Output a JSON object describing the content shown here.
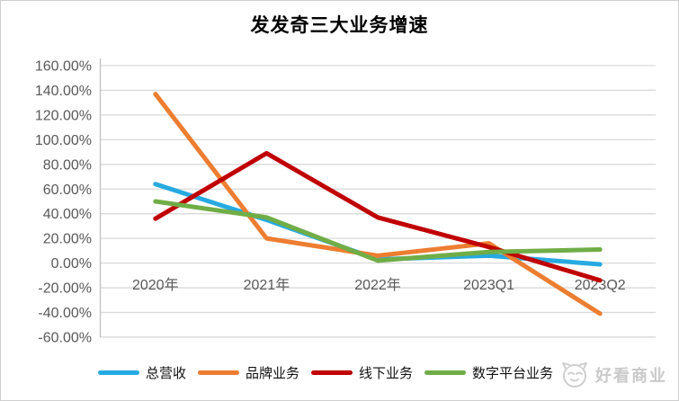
{
  "chart_data": {
    "type": "line",
    "title": "发发奇三大业务增速",
    "categories": [
      "2020年",
      "2021年",
      "2022年",
      "2023Q1",
      "2023Q2"
    ],
    "series": [
      {
        "id": "total-revenue",
        "name": "总营收",
        "color": "#27AAE1",
        "values": [
          64,
          35,
          3,
          6,
          -1
        ]
      },
      {
        "id": "brand-business",
        "name": "品牌业务",
        "color": "#ED7D31",
        "values": [
          137,
          20,
          6,
          16,
          -41
        ]
      },
      {
        "id": "offline-business",
        "name": "线下业务",
        "color": "#C00000",
        "values": [
          36,
          89,
          37,
          13,
          -14
        ]
      },
      {
        "id": "digital-platform-business",
        "name": "数字平台业务",
        "color": "#70AD47",
        "values": [
          50,
          37,
          2,
          9,
          11
        ]
      }
    ],
    "y_axis": {
      "min": -60,
      "max": 160,
      "step": 20,
      "tick_labels": [
        "160.00%",
        "140.00%",
        "120.00%",
        "100.00%",
        "80.00%",
        "60.00%",
        "40.00%",
        "20.00%",
        "0.00%",
        "-20.00%",
        "-40.00%",
        "-60.00%"
      ]
    },
    "unit": "percent",
    "grid": true,
    "legend_position": "bottom"
  },
  "watermark": {
    "text": "好看商业"
  },
  "colors": {
    "gridline": "#D9D9D9",
    "axis_line": "#BFBFBF",
    "tick_text": "#595959",
    "title_text": "#000000",
    "watermark_text": "#C9C9C9"
  }
}
